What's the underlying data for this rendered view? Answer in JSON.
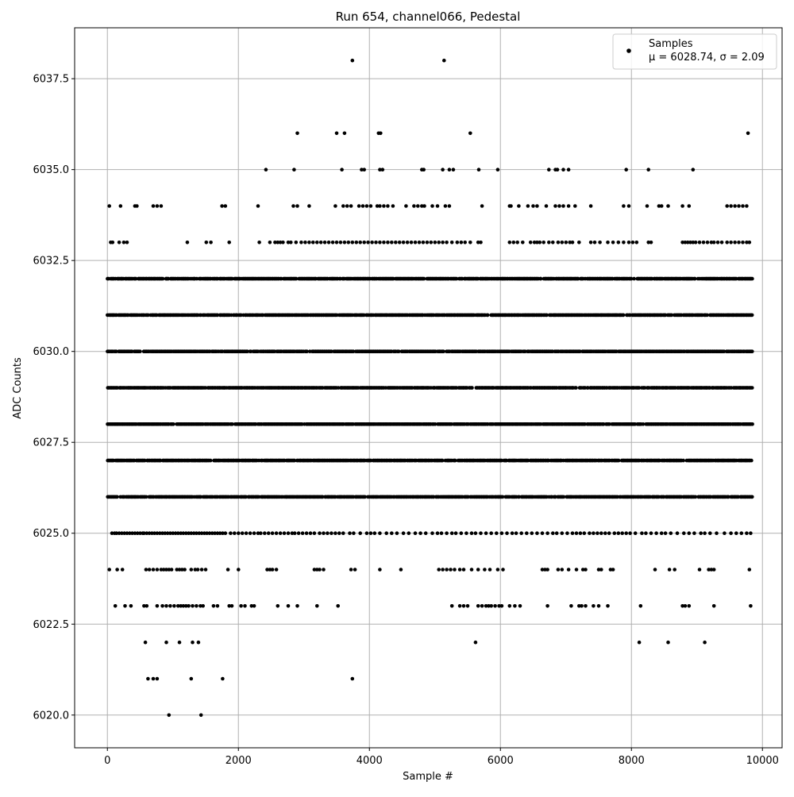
{
  "chart_data": {
    "type": "scatter",
    "title": "Run 654, channel066, Pedestal",
    "xlabel": "Sample #",
    "ylabel": "ADC Counts",
    "xlim": [
      -500,
      10300
    ],
    "ylim": [
      6019.1,
      6038.9
    ],
    "xticks": [
      0,
      2000,
      4000,
      6000,
      8000,
      10000
    ],
    "xtick_labels": [
      "0",
      "2000",
      "4000",
      "6000",
      "8000",
      "10000"
    ],
    "yticks": [
      6020.0,
      6022.5,
      6025.0,
      6027.5,
      6030.0,
      6032.5,
      6035.0,
      6037.5
    ],
    "ytick_labels": [
      "6020.0",
      "6022.5",
      "6025.0",
      "6027.5",
      "6030.0",
      "6032.5",
      "6035.0",
      "6037.5"
    ],
    "grid": true,
    "legend": {
      "placement": "upper right",
      "series_label": "Samples",
      "stats_label": "μ = 6028.74, σ = 2.09"
    },
    "marker_color": "#000000",
    "n_samples": 9850,
    "mean": 6028.74,
    "sigma": 2.09,
    "dense_levels": [
      6026,
      6027,
      6028,
      6029,
      6030,
      6031,
      6032
    ],
    "sparse_levels": [
      {
        "y": 6033,
        "x": [
          50,
          80,
          180,
          250,
          300,
          1220,
          1510,
          1580,
          1860,
          2320,
          2480,
          2560,
          2600,
          2640,
          2680,
          2760,
          2800,
          2880,
          2960,
          3020,
          3080,
          3140,
          3200,
          3260,
          3320,
          3380,
          3440,
          3500,
          3560,
          3620,
          3680,
          3740,
          3800,
          3860,
          3920,
          3980,
          4040,
          4100,
          4160,
          4220,
          4280,
          4340,
          4400,
          4460,
          4520,
          4580,
          4640,
          4700,
          4760,
          4820,
          4880,
          4940,
          5000,
          5060,
          5120,
          5180,
          5260,
          5340,
          5400,
          5460,
          5540,
          5660,
          5700,
          6140,
          6200,
          6260,
          6340,
          6460,
          6520,
          6560,
          6600,
          6660,
          6740,
          6800,
          6880,
          6940,
          7000,
          7060,
          7100,
          7200,
          7380,
          7440,
          7520,
          7640,
          7720,
          7800,
          7880,
          7960,
          8020,
          8080,
          8260,
          8300,
          8780,
          8820,
          8860,
          8900,
          8940,
          8980,
          9040,
          9100,
          9160,
          9220,
          9260,
          9320,
          9380,
          9460,
          9520,
          9580,
          9640,
          9700,
          9760,
          9800
        ]
      },
      {
        "y": 6034,
        "x": [
          30,
          200,
          420,
          450,
          700,
          760,
          820,
          1750,
          1800,
          2300,
          2840,
          2900,
          3080,
          3480,
          3600,
          3660,
          3720,
          3840,
          3900,
          3960,
          4020,
          4120,
          4160,
          4220,
          4280,
          4360,
          4560,
          4680,
          4740,
          4800,
          4840,
          4960,
          5040,
          5160,
          5220,
          5720,
          6140,
          6160,
          6280,
          6420,
          6500,
          6560,
          6700,
          6840,
          6900,
          6960,
          7040,
          7140,
          7380,
          7880,
          7960,
          8240,
          8420,
          8460,
          8560,
          8780,
          8880,
          9460,
          9520,
          9580,
          9640,
          9700,
          9760
        ]
      },
      {
        "y": 6035,
        "x": [
          2420,
          2850,
          3580,
          3880,
          3920,
          4160,
          4200,
          4800,
          4830,
          5120,
          5220,
          5280,
          5670,
          5960,
          6740,
          6840,
          6870,
          6960,
          7040,
          7920,
          8260,
          8940
        ]
      },
      {
        "y": 6036,
        "x": [
          2900,
          3500,
          3620,
          4140,
          4170,
          5540,
          9780
        ]
      },
      {
        "y": 6038,
        "x": [
          3740,
          5140
        ]
      },
      {
        "y": 6025,
        "x": [
          70,
          110,
          140,
          180,
          220,
          260,
          300,
          340,
          380,
          420,
          460,
          500,
          540,
          560,
          600,
          640,
          680,
          720,
          760,
          800,
          840,
          880,
          920,
          960,
          1000,
          1040,
          1080,
          1120,
          1160,
          1200,
          1240,
          1280,
          1320,
          1360,
          1400,
          1440,
          1480,
          1520,
          1560,
          1600,
          1640,
          1680,
          1720,
          1760,
          1800,
          1880,
          1940,
          2000,
          2060,
          2120,
          2180,
          2240,
          2300,
          2340,
          2400,
          2460,
          2520,
          2580,
          2640,
          2700,
          2760,
          2820,
          2860,
          2920,
          2980,
          3040,
          3100,
          3160,
          3240,
          3300,
          3360,
          3420,
          3480,
          3540,
          3600,
          3700,
          3760,
          3860,
          3960,
          4020,
          4080,
          4160,
          4260,
          4340,
          4420,
          4520,
          4600,
          4700,
          4780,
          4860,
          4960,
          5040,
          5100,
          5180,
          5260,
          5320,
          5400,
          5480,
          5560,
          5620,
          5700,
          5780,
          5860,
          5940,
          6020,
          6100,
          6180,
          6240,
          6320,
          6400,
          6480,
          6560,
          6640,
          6720,
          6800,
          6860,
          6940,
          7020,
          7100,
          7160,
          7220,
          7280,
          7360,
          7420,
          7480,
          7540,
          7600,
          7660,
          7740,
          7800,
          7860,
          7920,
          7980,
          8060,
          8160,
          8220,
          8300,
          8380,
          8460,
          8520,
          8600,
          8700,
          8800,
          8880,
          8960,
          9060,
          9120,
          9200,
          9300,
          9420,
          9520,
          9600,
          9680,
          9760,
          9820
        ]
      },
      {
        "y": 6024,
        "x": [
          30,
          150,
          230,
          590,
          640,
          700,
          760,
          820,
          860,
          900,
          940,
          980,
          1060,
          1100,
          1140,
          1180,
          1280,
          1340,
          1380,
          1440,
          1500,
          1840,
          2000,
          2440,
          2480,
          2520,
          2580,
          3160,
          3200,
          3240,
          3300,
          3720,
          3780,
          4160,
          4480,
          5060,
          5120,
          5180,
          5240,
          5300,
          5380,
          5440,
          5560,
          5660,
          5760,
          5840,
          5960,
          6040,
          6640,
          6680,
          6720,
          6880,
          6940,
          7040,
          7160,
          7260,
          7300,
          7500,
          7540,
          7680,
          7720,
          8360,
          8580,
          8660,
          9040,
          9180,
          9220,
          9260,
          9800
        ]
      },
      {
        "y": 6023,
        "x": [
          120,
          270,
          360,
          560,
          600,
          760,
          840,
          900,
          960,
          1020,
          1080,
          1120,
          1160,
          1200,
          1240,
          1300,
          1360,
          1420,
          1460,
          1620,
          1680,
          1860,
          1900,
          2040,
          2100,
          2200,
          2240,
          2600,
          2760,
          2900,
          3200,
          3520,
          5260,
          5380,
          5440,
          5500,
          5660,
          5720,
          5780,
          5820,
          5860,
          5920,
          5980,
          6020,
          6140,
          6220,
          6300,
          6720,
          7080,
          7200,
          7240,
          7300,
          7420,
          7500,
          7640,
          8140,
          8780,
          8820,
          8880,
          9260,
          9820
        ]
      },
      {
        "y": 6022,
        "x": [
          580,
          900,
          1100,
          1300,
          1390,
          5620,
          8120,
          8560,
          9120
        ]
      },
      {
        "y": 6021,
        "x": [
          620,
          700,
          760,
          1280,
          1760,
          3740
        ]
      },
      {
        "y": 6020,
        "x": [
          940,
          1430
        ]
      }
    ]
  }
}
